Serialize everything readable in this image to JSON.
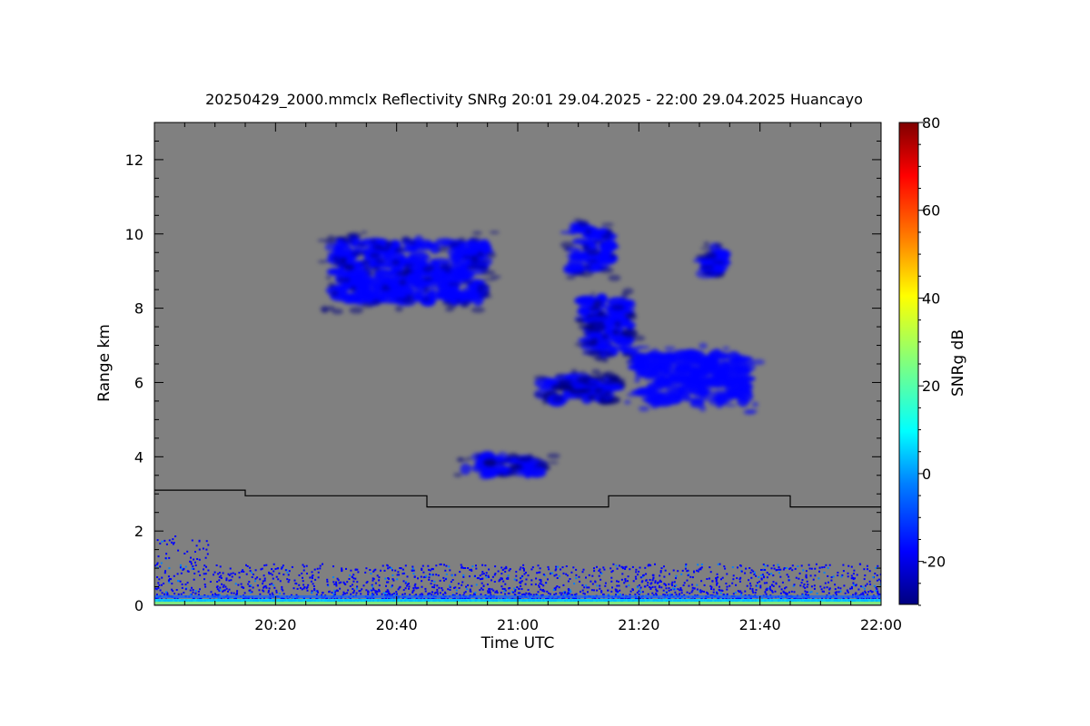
{
  "chart_data": {
    "type": "heatmap",
    "title": "20250429_2000.mmclx Reflectivity SNRg   20:01 29.04.2025 - 22:00 29.04.2025 Huancayo",
    "xlabel": "Time UTC",
    "ylabel": "Range km",
    "colorbar_label": "SNRg dB",
    "x_range_minutes": [
      0,
      120
    ],
    "x_ticks": [
      {
        "minute": 20,
        "label": "20:20"
      },
      {
        "minute": 40,
        "label": "20:40"
      },
      {
        "minute": 60,
        "label": "21:00"
      },
      {
        "minute": 80,
        "label": "21:20"
      },
      {
        "minute": 100,
        "label": "21:40"
      },
      {
        "minute": 120,
        "label": "22:00"
      }
    ],
    "ylim": [
      0,
      13
    ],
    "y_ticks": [
      {
        "value": 0,
        "label": "0"
      },
      {
        "value": 2,
        "label": "2"
      },
      {
        "value": 4,
        "label": "4"
      },
      {
        "value": 6,
        "label": "6"
      },
      {
        "value": 8,
        "label": "8"
      },
      {
        "value": 10,
        "label": "10"
      },
      {
        "value": 12,
        "label": "12"
      }
    ],
    "colorbar_range": [
      -30,
      80
    ],
    "colorbar_ticks": [
      {
        "value": -20,
        "label": "-20"
      },
      {
        "value": 0,
        "label": "0"
      },
      {
        "value": 20,
        "label": "20"
      },
      {
        "value": 40,
        "label": "40"
      },
      {
        "value": 60,
        "label": "60"
      },
      {
        "value": 80,
        "label": "80"
      }
    ],
    "background_color": "#808080",
    "colormap": [
      "#00007f",
      "#0000ff",
      "#007fff",
      "#00ffff",
      "#7fff7f",
      "#ffff00",
      "#ff7f00",
      "#ff0000",
      "#7f0000"
    ],
    "echo_regions": [
      {
        "name": "cloud-left",
        "t": [
          27,
          57
        ],
        "z": [
          7.9,
          10.1
        ],
        "snr": -18
      },
      {
        "name": "cloud-upper-center",
        "t": [
          68,
          76
        ],
        "z": [
          8.8,
          10.4
        ],
        "snr": -19
      },
      {
        "name": "cloud-small-right",
        "t": [
          90.5,
          94
        ],
        "z": [
          8.8,
          9.8
        ],
        "snr": -20
      },
      {
        "name": "cloud-streak",
        "t": [
          70,
          80
        ],
        "z": [
          6.5,
          8.5
        ],
        "snr": -21
      },
      {
        "name": "cloud-main-right",
        "t": [
          78,
          100
        ],
        "z": [
          5.2,
          7.0
        ],
        "snr": -16
      },
      {
        "name": "cloud-lower-left",
        "t": [
          63,
          78
        ],
        "z": [
          5.4,
          6.3
        ],
        "snr": -22
      },
      {
        "name": "cloud-mid",
        "t": [
          50,
          66
        ],
        "z": [
          3.4,
          4.1
        ],
        "snr": -21
      },
      {
        "name": "near-surface-clutter",
        "t": [
          0,
          120
        ],
        "z": [
          0,
          1.8
        ],
        "snr": -12
      }
    ],
    "threshold_line": {
      "t": [
        0,
        15,
        15,
        45,
        45,
        75,
        75,
        105,
        105,
        120
      ],
      "range": [
        3.1,
        3.1,
        2.95,
        2.95,
        2.65,
        2.65,
        2.95,
        2.95,
        2.65,
        2.65
      ]
    }
  }
}
